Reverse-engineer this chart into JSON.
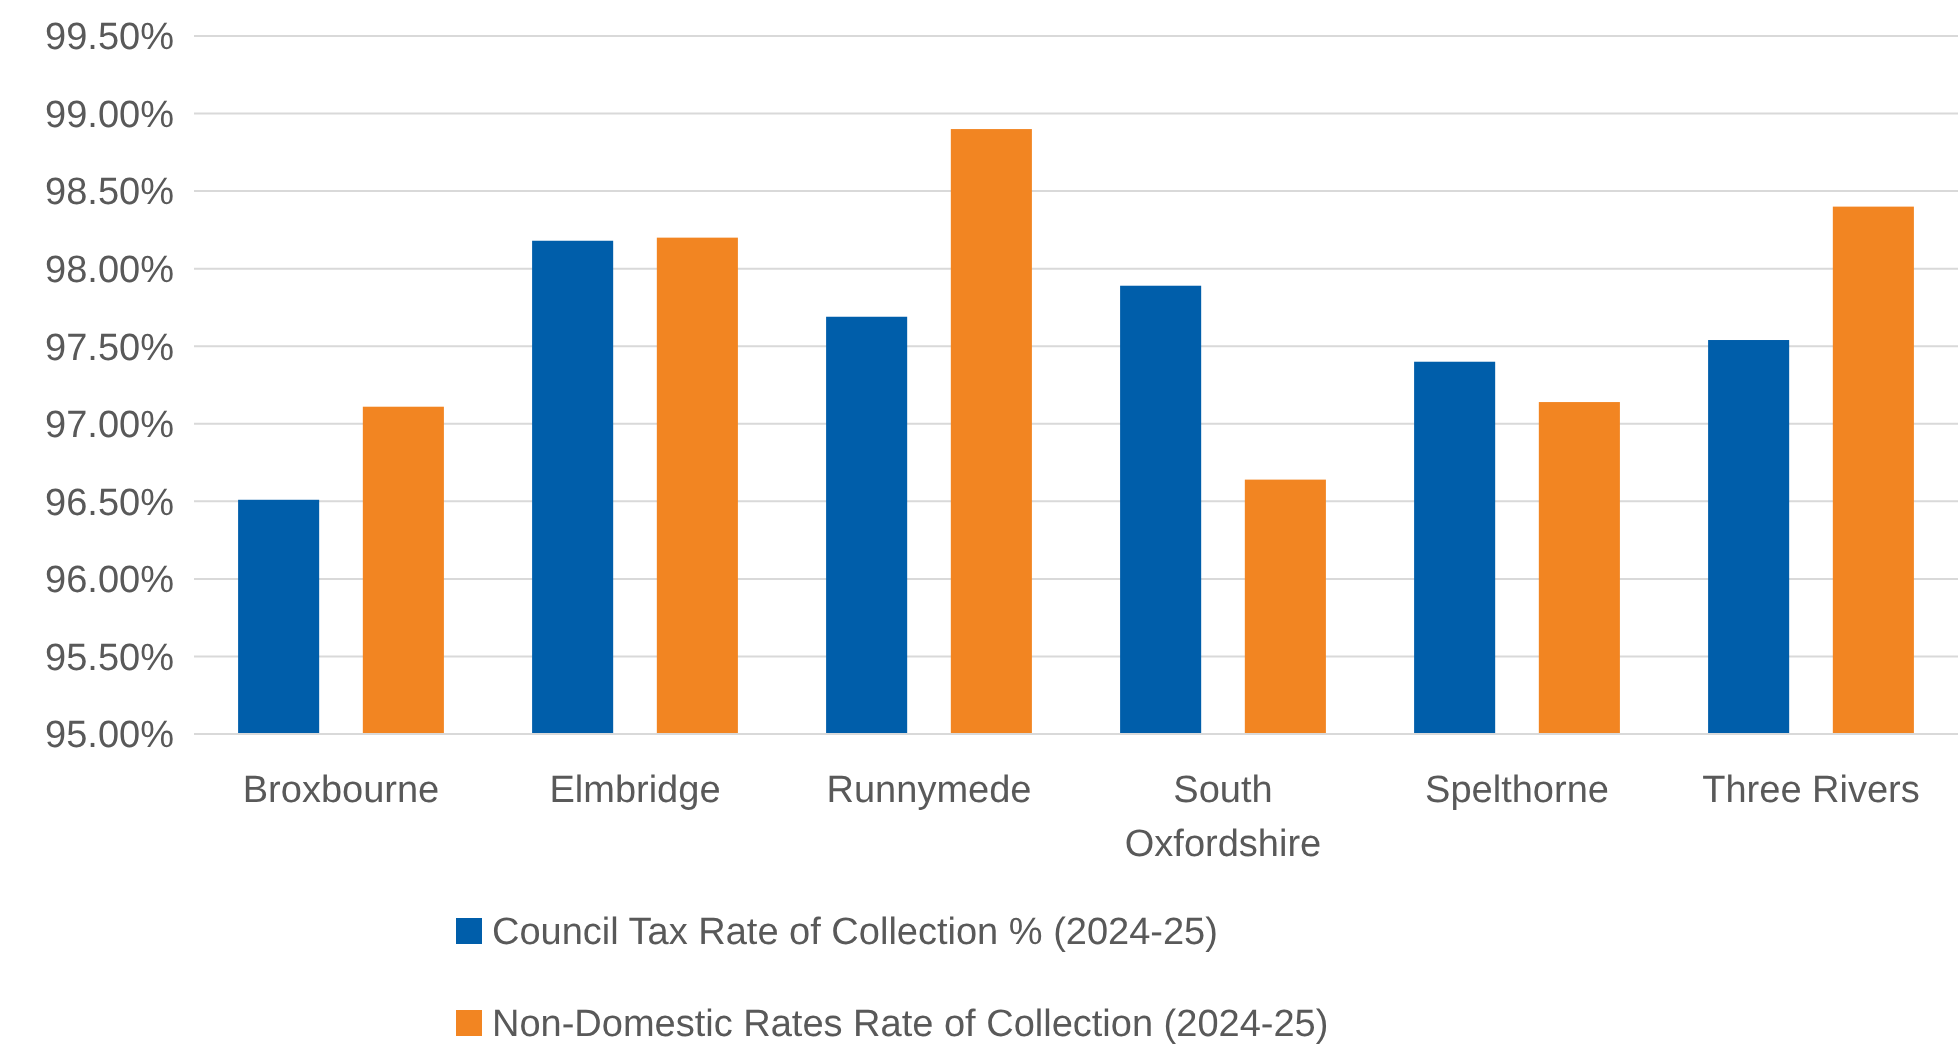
{
  "chart_data": {
    "type": "bar",
    "categories": [
      "Broxbourne",
      "Elmbridge",
      "Runnymede",
      "South Oxfordshire",
      "Spelthorne",
      "Three Rivers"
    ],
    "series": [
      {
        "name": "Council Tax Rate of Collection % (2024-25)",
        "color": "#005eaa",
        "values": [
          96.51,
          98.18,
          97.69,
          97.89,
          97.4,
          97.54
        ]
      },
      {
        "name": "Non-Domestic Rates Rate of Collection (2024-25)",
        "color": "#f28522",
        "values": [
          97.11,
          98.2,
          98.9,
          96.64,
          97.14,
          98.4
        ]
      }
    ],
    "ylim": [
      95,
      99.5
    ],
    "yticks": [
      {
        "value": 95,
        "label": "95.00%"
      },
      {
        "value": 95.5,
        "label": "95.50%"
      },
      {
        "value": 96,
        "label": "96.00%"
      },
      {
        "value": 96.5,
        "label": "96.50%"
      },
      {
        "value": 97,
        "label": "97.00%"
      },
      {
        "value": 97.5,
        "label": "97.50%"
      },
      {
        "value": 98,
        "label": "98.00%"
      },
      {
        "value": 98.5,
        "label": "98.50%"
      },
      {
        "value": 99,
        "label": "99.00%"
      },
      {
        "value": 99.5,
        "label": "99.50%"
      }
    ],
    "grid": "y",
    "legend": "bottom"
  }
}
